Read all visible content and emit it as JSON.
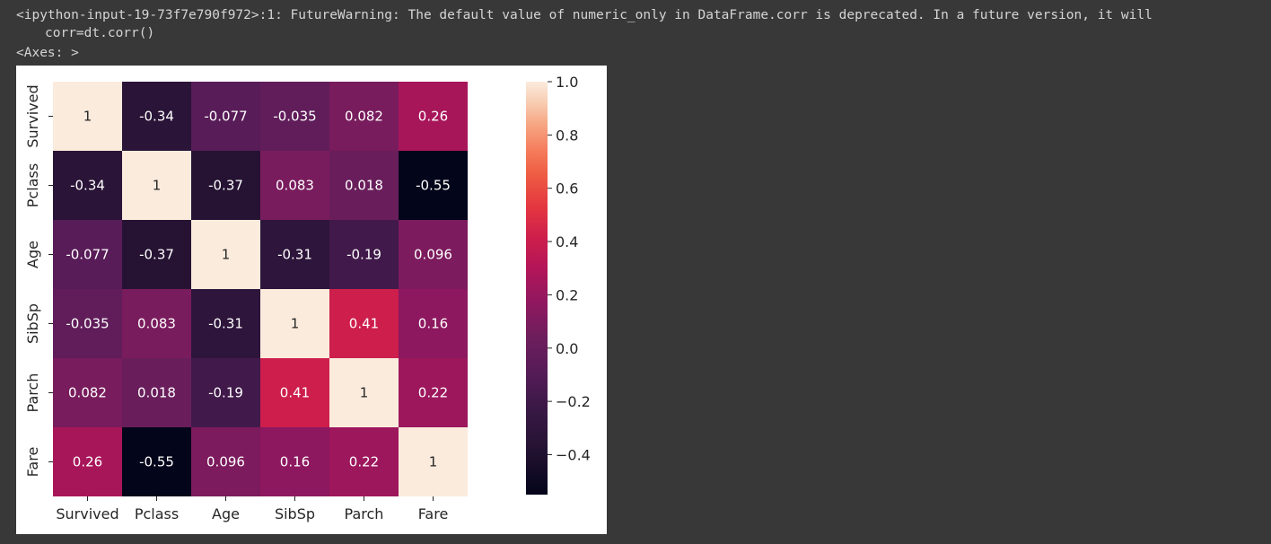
{
  "output": {
    "warning": "<ipython-input-19-73f7e790f972>:1: FutureWarning: The default value of numeric_only in DataFrame.corr is deprecated. In a future version, it will",
    "code": "corr=dt.corr()",
    "axes_repr": "<Axes: >"
  },
  "chart_data": {
    "type": "heatmap",
    "title": "",
    "xlabel": "",
    "ylabel": "",
    "x": [
      "Survived",
      "Pclass",
      "Age",
      "SibSp",
      "Parch",
      "Fare"
    ],
    "y": [
      "Survived",
      "Pclass",
      "Age",
      "SibSp",
      "Parch",
      "Fare"
    ],
    "values": [
      [
        1,
        -0.34,
        -0.077,
        -0.035,
        0.082,
        0.26
      ],
      [
        -0.34,
        1,
        -0.37,
        0.083,
        0.018,
        -0.55
      ],
      [
        -0.077,
        -0.37,
        1,
        -0.31,
        -0.19,
        0.096
      ],
      [
        -0.035,
        0.083,
        -0.31,
        1,
        0.41,
        0.16
      ],
      [
        0.082,
        0.018,
        -0.19,
        0.41,
        1,
        0.22
      ],
      [
        0.26,
        -0.55,
        0.096,
        0.16,
        0.22,
        1
      ]
    ],
    "labels": [
      [
        "1",
        "-0.34",
        "-0.077",
        "-0.035",
        "0.082",
        "0.26"
      ],
      [
        "-0.34",
        "1",
        "-0.37",
        "0.083",
        "0.018",
        "-0.55"
      ],
      [
        "-0.077",
        "-0.37",
        "1",
        "-0.31",
        "-0.19",
        "0.096"
      ],
      [
        "-0.035",
        "0.083",
        "-0.31",
        "1",
        "0.41",
        "0.16"
      ],
      [
        "0.082",
        "0.018",
        "-0.19",
        "0.41",
        "1",
        "0.22"
      ],
      [
        "0.26",
        "-0.55",
        "0.096",
        "0.16",
        "0.22",
        "1"
      ]
    ],
    "annotated": true,
    "colormap": "rocket",
    "colorbar": {
      "range": [
        -0.55,
        1.0
      ],
      "ticks": [
        1.0,
        0.8,
        0.6,
        0.4,
        0.2,
        0.0,
        -0.2,
        -0.4
      ],
      "tick_labels": [
        "1.0",
        "0.8",
        "0.6",
        "0.4",
        "0.2",
        "0.0",
        "−0.2",
        "−0.4"
      ]
    }
  }
}
